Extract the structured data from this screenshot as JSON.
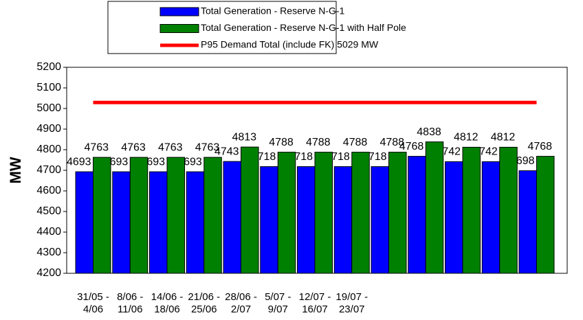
{
  "chart_data": {
    "type": "bar",
    "y_label": "MW",
    "categories": [
      "31/05 - 4/06",
      "8/06 - 11/06",
      "14/06 - 18/06",
      "21/06 - 25/06",
      "28/06 - 2/07",
      "5/07 - 9/07",
      "12/07 - 16/07",
      "19/07 - 23/07",
      null,
      null,
      null,
      null,
      null
    ],
    "series": [
      {
        "name": "Total Generation - Reserve N-G-1",
        "color": "#0000ff",
        "kind": "bar",
        "values": [
          4693,
          4693,
          4693,
          4693,
          4743,
          4718,
          4718,
          4718,
          4718,
          4768,
          4742,
          4742,
          4698
        ]
      },
      {
        "name": "Total Generation - Reserve N-G-1 with Half Pole",
        "color": "#008000",
        "kind": "bar",
        "values": [
          4763,
          4763,
          4763,
          4763,
          4813,
          4788,
          4788,
          4788,
          4788,
          4838,
          4812,
          4812,
          4768
        ]
      },
      {
        "name": "P95 Demand Total (include FK) 5029 MW",
        "color": "#ff0000",
        "kind": "line",
        "values": [
          5029,
          5029,
          5029,
          5029,
          5029,
          5029,
          5029,
          5029,
          5029,
          5029,
          5029,
          5029,
          5029
        ]
      }
    ],
    "ylim": [
      4200,
      5200
    ],
    "yticks": [
      4200,
      4300,
      4400,
      4500,
      4600,
      4700,
      4800,
      4900,
      5000,
      5100,
      5200
    ],
    "legend": "top"
  }
}
